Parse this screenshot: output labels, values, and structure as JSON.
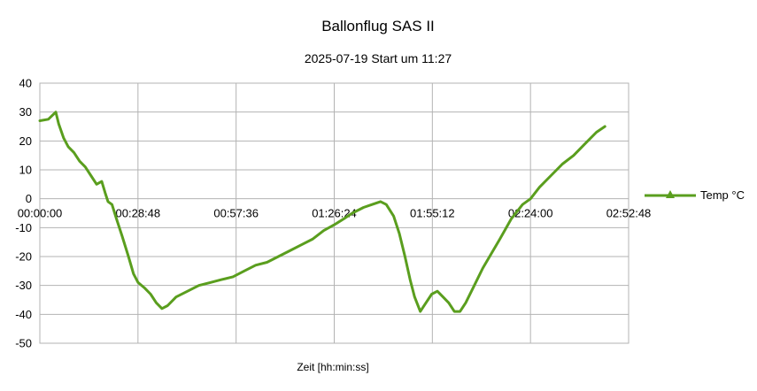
{
  "chart_data": {
    "type": "line",
    "title": "Ballonflug SAS II",
    "subtitle": "2025-07-19 Start um 11:27",
    "xlabel": "Zeit [hh:min:ss]",
    "ylabel": "",
    "xlim_seconds": [
      0,
      10368
    ],
    "ylim": [
      -50,
      40
    ],
    "x_ticks": [
      {
        "seconds": 0,
        "label": "00:00:00"
      },
      {
        "seconds": 1728,
        "label": "00:28:48"
      },
      {
        "seconds": 3456,
        "label": "00:57:36"
      },
      {
        "seconds": 5184,
        "label": "01:26:24"
      },
      {
        "seconds": 6912,
        "label": "01:55:12"
      },
      {
        "seconds": 8640,
        "label": "02:24:00"
      },
      {
        "seconds": 10368,
        "label": "02:52:48"
      }
    ],
    "y_ticks": [
      40,
      30,
      20,
      10,
      0,
      -10,
      -20,
      -30,
      -40,
      -50
    ],
    "grid": true,
    "legend_position": "right",
    "series": [
      {
        "name": "Temp °C",
        "color": "#5a9e1e",
        "points": [
          [
            0,
            27
          ],
          [
            150,
            27.5
          ],
          [
            280,
            30
          ],
          [
            330,
            26
          ],
          [
            420,
            21
          ],
          [
            500,
            18
          ],
          [
            600,
            16
          ],
          [
            700,
            13
          ],
          [
            800,
            11
          ],
          [
            900,
            8
          ],
          [
            1000,
            5
          ],
          [
            1090,
            6
          ],
          [
            1150,
            2
          ],
          [
            1200,
            -1
          ],
          [
            1270,
            -2
          ],
          [
            1350,
            -7
          ],
          [
            1450,
            -13
          ],
          [
            1560,
            -20
          ],
          [
            1650,
            -26
          ],
          [
            1730,
            -29
          ],
          [
            1850,
            -31
          ],
          [
            1950,
            -33
          ],
          [
            2050,
            -36
          ],
          [
            2150,
            -38
          ],
          [
            2250,
            -37
          ],
          [
            2400,
            -34
          ],
          [
            2600,
            -32
          ],
          [
            2800,
            -30
          ],
          [
            3000,
            -29
          ],
          [
            3200,
            -28
          ],
          [
            3400,
            -27
          ],
          [
            3600,
            -25
          ],
          [
            3800,
            -23
          ],
          [
            4000,
            -22
          ],
          [
            4200,
            -20
          ],
          [
            4400,
            -18
          ],
          [
            4600,
            -16
          ],
          [
            4800,
            -14
          ],
          [
            5000,
            -11
          ],
          [
            5184,
            -9
          ],
          [
            5350,
            -7
          ],
          [
            5500,
            -5
          ],
          [
            5700,
            -3
          ],
          [
            5850,
            -2
          ],
          [
            6000,
            -1
          ],
          [
            6100,
            -2
          ],
          [
            6230,
            -6
          ],
          [
            6330,
            -12
          ],
          [
            6430,
            -20
          ],
          [
            6520,
            -28
          ],
          [
            6600,
            -34
          ],
          [
            6700,
            -39
          ],
          [
            6800,
            -36
          ],
          [
            6900,
            -33
          ],
          [
            7000,
            -32
          ],
          [
            7100,
            -34
          ],
          [
            7200,
            -36
          ],
          [
            7300,
            -39
          ],
          [
            7400,
            -39
          ],
          [
            7500,
            -36
          ],
          [
            7650,
            -30
          ],
          [
            7800,
            -24
          ],
          [
            7950,
            -19
          ],
          [
            8100,
            -14
          ],
          [
            8300,
            -7
          ],
          [
            8500,
            -2
          ],
          [
            8640,
            0
          ],
          [
            8800,
            4
          ],
          [
            9000,
            8
          ],
          [
            9200,
            12
          ],
          [
            9400,
            15
          ],
          [
            9600,
            19
          ],
          [
            9800,
            23
          ],
          [
            9950,
            25
          ]
        ]
      }
    ]
  }
}
